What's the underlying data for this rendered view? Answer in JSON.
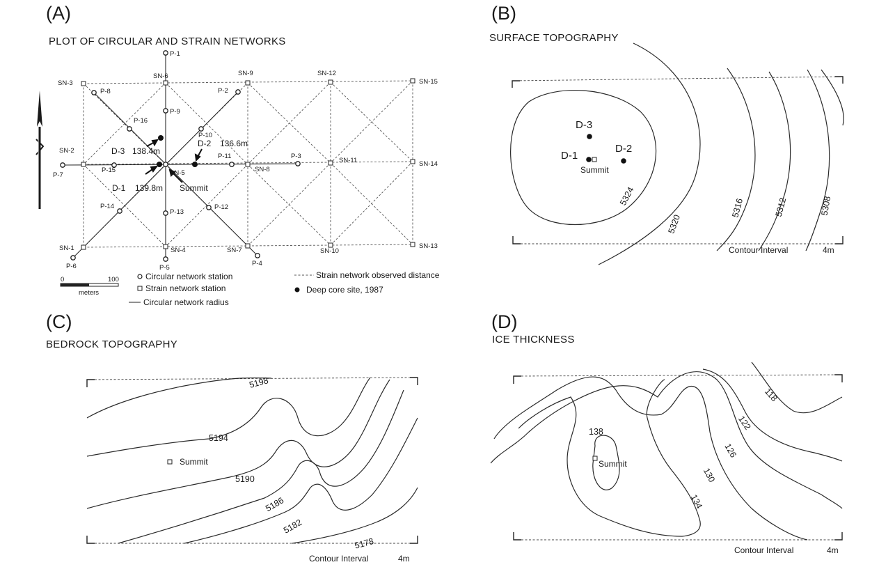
{
  "panel_a": {
    "letter": "(A)",
    "title": "PLOT OF CIRCULAR AND STRAIN NETWORKS",
    "circular_stations": [
      "P-1",
      "P-2",
      "P-3",
      "P-4",
      "P-5",
      "P-6",
      "P-7",
      "P-8",
      "P-9",
      "P-10",
      "P-11",
      "P-12",
      "P-13",
      "P-14",
      "P-15",
      "P-16"
    ],
    "strain_stations": [
      "SN-1",
      "SN-2",
      "SN-3",
      "SN-4",
      "SN-5",
      "SN-6",
      "SN-7",
      "SN-8",
      "SN-9",
      "SN-10",
      "SN-11",
      "SN-12",
      "SN-13",
      "SN-14",
      "SN-15"
    ],
    "core_sites": [
      {
        "name": "D-1",
        "depth": "139.8m"
      },
      {
        "name": "D-2",
        "depth": "136.6m"
      },
      {
        "name": "D-3",
        "depth": "138.4m"
      }
    ],
    "summit_label": "Summit",
    "scale": {
      "min": "0",
      "max": "100",
      "unit": "meters"
    },
    "legend": {
      "circular_station": "Circular network station",
      "strain_station": "Strain network station",
      "circular_radius": "Circular network radius",
      "strain_distance": "Strain network observed distance",
      "core_site": "Deep core site, 1987"
    }
  },
  "panel_b": {
    "letter": "(B)",
    "title": "SURFACE TOPOGRAPHY",
    "contours": [
      "5324",
      "5320",
      "5316",
      "5312",
      "5308"
    ],
    "sites": [
      "D-3",
      "D-1",
      "D-2"
    ],
    "summit_label": "Summit",
    "interval_label": "Contour Interval",
    "interval_value": "4m"
  },
  "panel_c": {
    "letter": "(C)",
    "title": "BEDROCK TOPOGRAPHY",
    "contours": [
      "5198",
      "5194",
      "5190",
      "5186",
      "5182",
      "5178"
    ],
    "summit_label": "Summit",
    "interval_label": "Contour Interval",
    "interval_value": "4m"
  },
  "panel_d": {
    "letter": "(D)",
    "title": "ICE THICKNESS",
    "contours": [
      "118",
      "122",
      "126",
      "130",
      "134",
      "138"
    ],
    "summit_label": "Summit",
    "interval_label": "Contour Interval",
    "interval_value": "4m"
  }
}
